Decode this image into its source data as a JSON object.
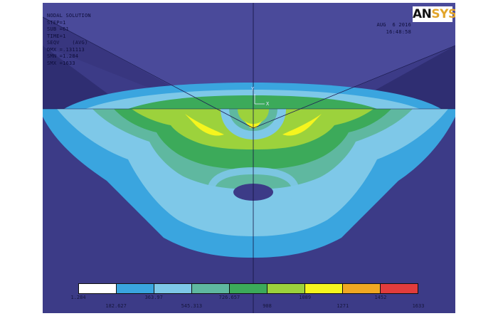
{
  "header": {
    "line1": "NODAL SOLUTION",
    "line2": "STEP=1",
    "line3": "SUB =61",
    "line4": "TIME=1",
    "line5": "SEQV    (AVG)",
    "line6": "DMX =.131113",
    "line7": "SMN =1.284",
    "line8": "SMX =1633"
  },
  "date_time": {
    "date": "AUG  6 2016",
    "time": "16:48:58"
  },
  "logo": {
    "ans": "AN",
    "sys": "SYS"
  },
  "axis": {
    "y": "Y",
    "x": "X"
  },
  "legend": {
    "colors": [
      "#ffffff",
      "#3aa5df",
      "#7ec8e8",
      "#5fb8a0",
      "#3caa5a",
      "#9cd23c",
      "#f5f51e",
      "#f0a823",
      "#e23c3c"
    ],
    "upper_labels": [
      "1.284",
      "363.97",
      "726.657",
      "1089",
      "1452"
    ],
    "lower_labels": [
      "182.627",
      "545.313",
      "908",
      "1271",
      "1633"
    ]
  }
}
